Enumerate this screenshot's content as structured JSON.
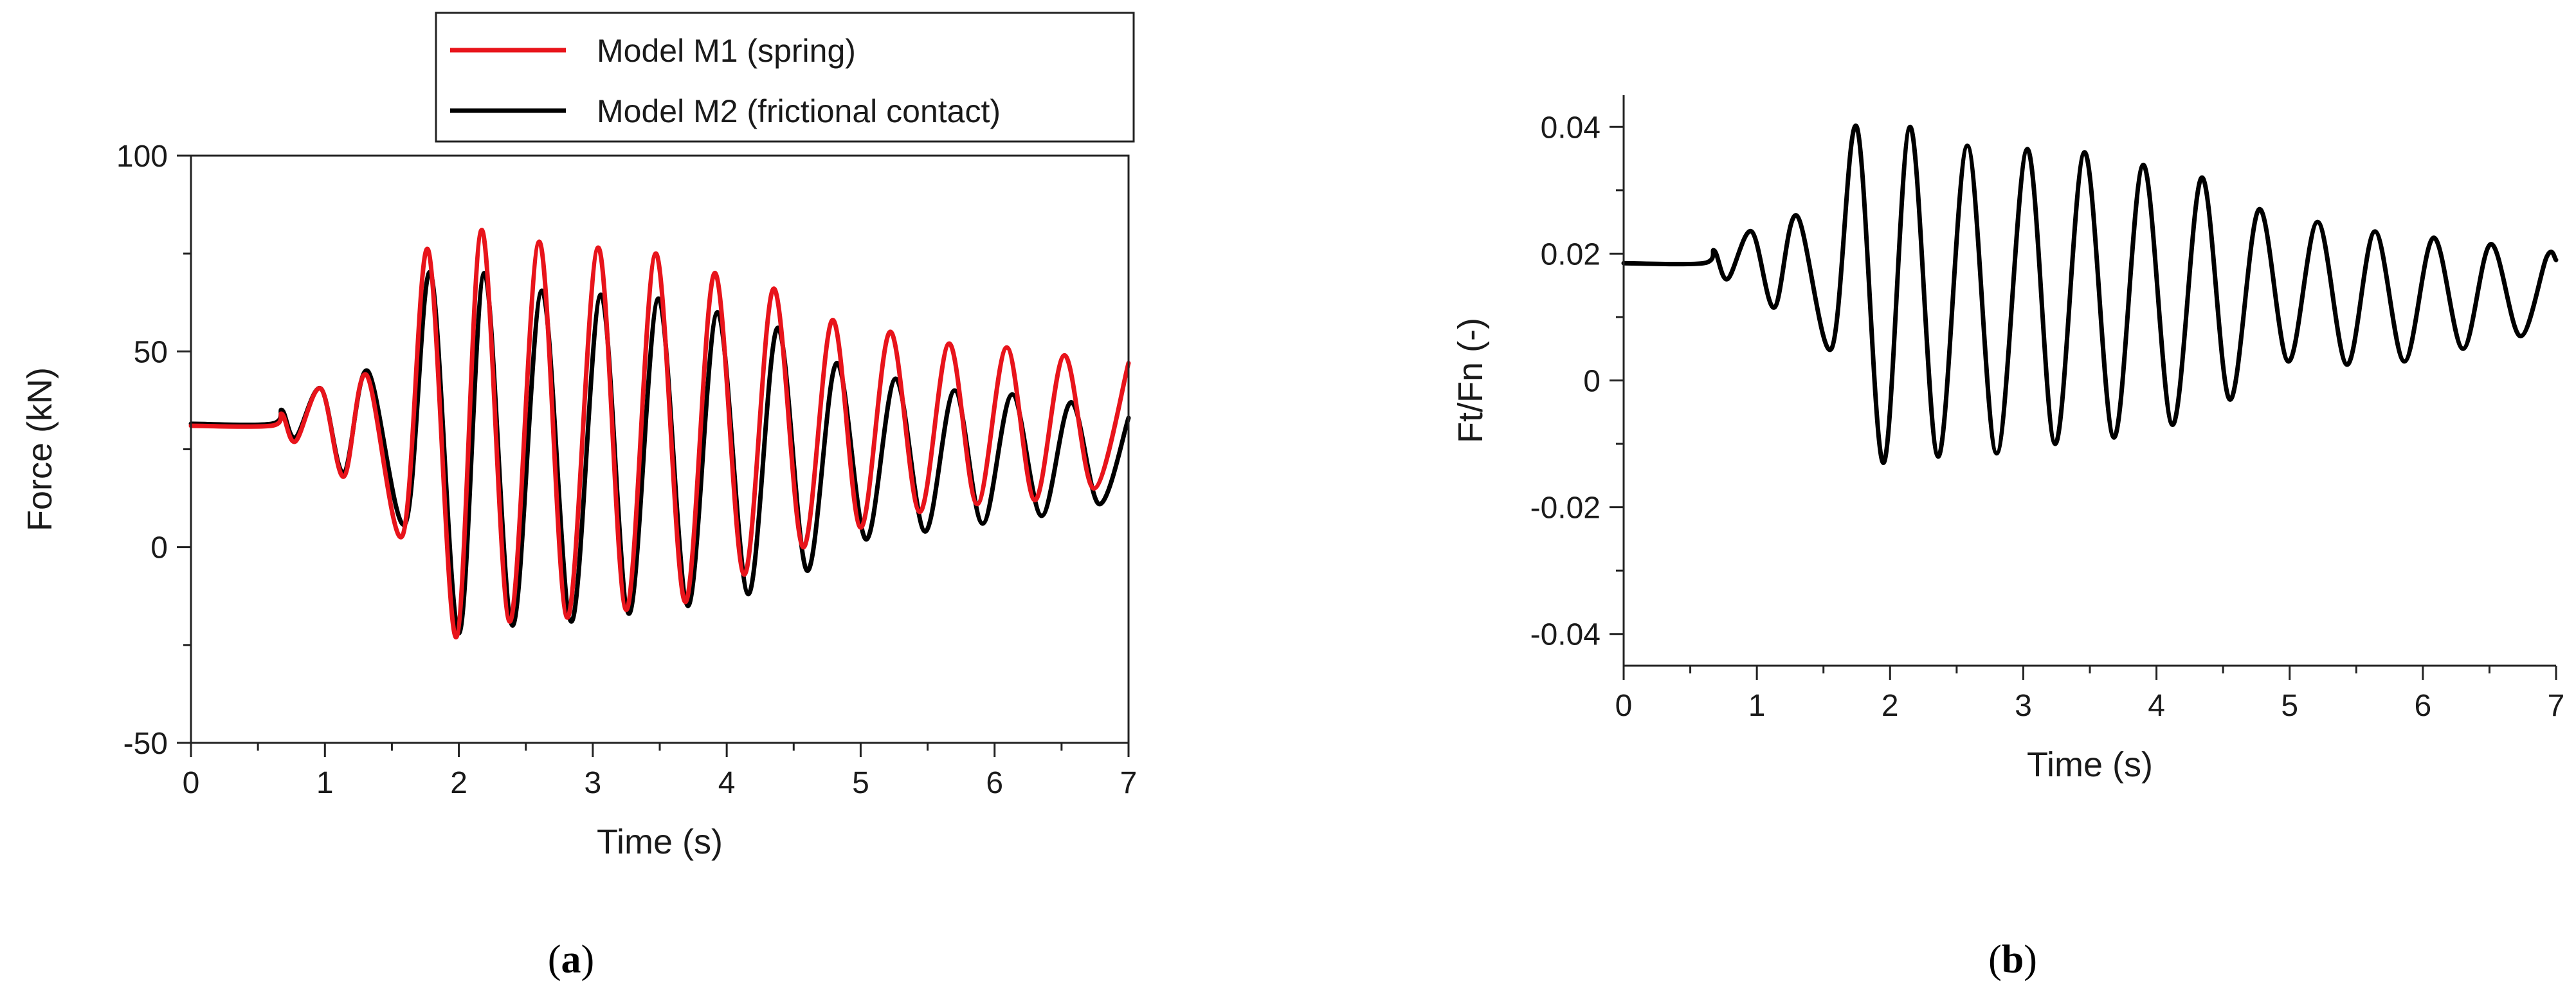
{
  "chart_data": [
    {
      "type": "line",
      "panel_label": {
        "open": "(",
        "letter": "a",
        "close": ")"
      },
      "xlabel": "Time (s)",
      "ylabel": "Force (kN)",
      "xlim": [
        0,
        7
      ],
      "ylim": [
        -50,
        100
      ],
      "x_ticks": [
        0,
        1,
        2,
        3,
        4,
        5,
        6,
        7
      ],
      "y_ticks": [
        -50,
        0,
        50,
        100
      ],
      "legend_position": "top-center",
      "grid": false,
      "series": [
        {
          "name": "Model M1 (spring)",
          "color": "#e8141b",
          "points": [
            [
              0,
              31
            ],
            [
              0.6,
              31
            ],
            [
              0.68,
              34
            ],
            [
              0.78,
              27
            ],
            [
              0.97,
              40.5
            ],
            [
              1.14,
              18
            ],
            [
              1.31,
              44
            ],
            [
              1.58,
              3
            ],
            [
              1.77,
              76
            ],
            [
              1.98,
              -23
            ],
            [
              2.17,
              81
            ],
            [
              2.38,
              -19
            ],
            [
              2.6,
              78
            ],
            [
              2.81,
              -18
            ],
            [
              3.04,
              76.5
            ],
            [
              3.25,
              -16
            ],
            [
              3.47,
              75
            ],
            [
              3.69,
              -14
            ],
            [
              3.91,
              70
            ],
            [
              4.13,
              -7
            ],
            [
              4.35,
              66
            ],
            [
              4.57,
              0
            ],
            [
              4.79,
              58
            ],
            [
              5.0,
              5
            ],
            [
              5.22,
              55
            ],
            [
              5.44,
              9
            ],
            [
              5.66,
              52
            ],
            [
              5.87,
              11
            ],
            [
              6.09,
              51
            ],
            [
              6.3,
              12
            ],
            [
              6.52,
              49
            ],
            [
              6.74,
              15
            ],
            [
              7.0,
              47
            ]
          ]
        },
        {
          "name": "Model M2 (frictional contact)",
          "color": "#000000",
          "points": [
            [
              0,
              31.5
            ],
            [
              0.6,
              31.5
            ],
            [
              0.68,
              35
            ],
            [
              0.78,
              28
            ],
            [
              0.97,
              40.5
            ],
            [
              1.14,
              19
            ],
            [
              1.32,
              45
            ],
            [
              1.6,
              6
            ],
            [
              1.79,
              70
            ],
            [
              2.0,
              -22
            ],
            [
              2.19,
              70
            ],
            [
              2.4,
              -20
            ],
            [
              2.62,
              65.5
            ],
            [
              2.84,
              -19
            ],
            [
              3.06,
              64.5
            ],
            [
              3.27,
              -17
            ],
            [
              3.49,
              63.5
            ],
            [
              3.71,
              -15
            ],
            [
              3.93,
              60
            ],
            [
              4.16,
              -12
            ],
            [
              4.38,
              56
            ],
            [
              4.6,
              -6
            ],
            [
              4.82,
              47
            ],
            [
              5.04,
              2
            ],
            [
              5.26,
              43
            ],
            [
              5.48,
              4
            ],
            [
              5.7,
              40
            ],
            [
              5.91,
              6
            ],
            [
              6.13,
              39
            ],
            [
              6.35,
              8
            ],
            [
              6.57,
              37
            ],
            [
              6.78,
              11
            ],
            [
              7.0,
              33
            ]
          ]
        }
      ]
    },
    {
      "type": "line",
      "panel_label": {
        "open": "(",
        "letter": "b",
        "close": ")"
      },
      "xlabel": "Time (s)",
      "ylabel": "Ft/Fn (-)",
      "xlim": [
        0,
        7
      ],
      "ylim": [
        -0.045,
        0.045
      ],
      "x_ticks": [
        0,
        1,
        2,
        3,
        4,
        5,
        6,
        7
      ],
      "y_ticks": [
        -0.04,
        -0.02,
        0,
        0.02,
        0.04
      ],
      "y_tick_labels": [
        "-0.04",
        "-0.02",
        "0",
        "0.02",
        "0.04"
      ],
      "grid": false,
      "series": [
        {
          "color": "#000000",
          "points": [
            [
              0,
              0.0185
            ],
            [
              0.6,
              0.0185
            ],
            [
              0.68,
              0.0205
            ],
            [
              0.78,
              0.016
            ],
            [
              0.96,
              0.0235
            ],
            [
              1.13,
              0.0115
            ],
            [
              1.3,
              0.026
            ],
            [
              1.56,
              0.005
            ],
            [
              1.75,
              0.04
            ],
            [
              1.95,
              -0.013
            ],
            [
              2.15,
              0.04
            ],
            [
              2.36,
              -0.012
            ],
            [
              2.58,
              0.037
            ],
            [
              2.8,
              -0.0115
            ],
            [
              3.03,
              0.0365
            ],
            [
              3.24,
              -0.01
            ],
            [
              3.46,
              0.036
            ],
            [
              3.68,
              -0.009
            ],
            [
              3.9,
              0.034
            ],
            [
              4.12,
              -0.007
            ],
            [
              4.34,
              0.032
            ],
            [
              4.55,
              -0.003
            ],
            [
              4.77,
              0.027
            ],
            [
              4.99,
              0.003
            ],
            [
              5.21,
              0.025
            ],
            [
              5.43,
              0.0025
            ],
            [
              5.64,
              0.0235
            ],
            [
              5.86,
              0.003
            ],
            [
              6.08,
              0.0225
            ],
            [
              6.3,
              0.005
            ],
            [
              6.51,
              0.0215
            ],
            [
              6.73,
              0.007
            ],
            [
              6.93,
              0.0195
            ],
            [
              7.0,
              0.019
            ]
          ]
        }
      ]
    }
  ]
}
